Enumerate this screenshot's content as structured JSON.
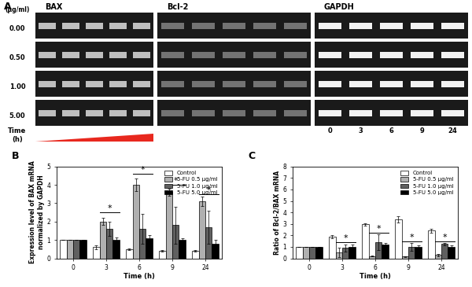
{
  "gel_panel": {
    "panel_label": "A",
    "genes": [
      "BAX",
      "Bcl-2",
      "GAPDH"
    ],
    "dose_unit": "(μg/ml)",
    "doses": [
      "0.00",
      "0.50",
      "1.00",
      "5.00"
    ],
    "time_label": "Time",
    "time_unit": "(h)",
    "times": [
      "0",
      "3",
      "6",
      "9",
      "24"
    ]
  },
  "chart_data": [
    {
      "panel_label": "B",
      "type": "bar",
      "x_label": "Time (h)",
      "y_label": "Expression level of BAX mRNA\nnormalized by GAPDH",
      "categories": [
        "0",
        "3",
        "6",
        "9",
        "24"
      ],
      "series": [
        {
          "name": "Control",
          "color": "#ffffff",
          "values": [
            1,
            0.6,
            0.5,
            0.4,
            0.4
          ],
          "errors": [
            0,
            0.1,
            0.05,
            0.05,
            0.05
          ]
        },
        {
          "name": "5-FU 0.5 μg/ml",
          "color": "#b0b0b0",
          "values": [
            1,
            2.0,
            4.0,
            3.6,
            3.1
          ],
          "errors": [
            0,
            0.2,
            0.35,
            0.2,
            0.25
          ]
        },
        {
          "name": "5-FU 1.0 μg/ml",
          "color": "#606060",
          "values": [
            1,
            1.6,
            1.6,
            1.8,
            1.7
          ],
          "errors": [
            0,
            0.4,
            0.8,
            1.0,
            0.9
          ]
        },
        {
          "name": "5-FU 5.0 μg/ml",
          "color": "#000000",
          "values": [
            1,
            1.0,
            1.1,
            1.0,
            0.8
          ],
          "errors": [
            0,
            0.15,
            0.15,
            0.1,
            0.2
          ]
        }
      ],
      "significance": {
        "categories": [
          "3",
          "6",
          "9",
          "24"
        ],
        "label": "*",
        "values": [
          2.5,
          4.6,
          4.0,
          3.5
        ]
      },
      "ylim": [
        0,
        5
      ],
      "yticks": [
        0,
        1,
        2,
        3,
        4,
        5
      ],
      "legend": "upper right"
    },
    {
      "panel_label": "C",
      "type": "bar",
      "x_label": "Time (h)",
      "y_label": "Ratio of Bcl-2/BAX mRNA",
      "categories": [
        "0",
        "3",
        "6",
        "9",
        "24"
      ],
      "series": [
        {
          "name": "Control",
          "color": "#ffffff",
          "values": [
            1,
            1.9,
            2.95,
            3.4,
            2.4
          ],
          "errors": [
            0,
            0.15,
            0.1,
            0.25,
            0.15
          ]
        },
        {
          "name": "5-FU 0.5 μg/ml",
          "color": "#b0b0b0",
          "values": [
            1,
            0.5,
            0.2,
            0.15,
            0.3
          ],
          "errors": [
            0,
            0.4,
            0.05,
            0.05,
            0.1
          ]
        },
        {
          "name": "5-FU 1.0 μg/ml",
          "color": "#606060",
          "values": [
            1,
            0.9,
            1.4,
            1.0,
            1.25
          ],
          "errors": [
            0,
            0.3,
            0.7,
            0.35,
            0.1
          ]
        },
        {
          "name": "5-FU 5.0 μg/ml",
          "color": "#000000",
          "values": [
            1,
            1.0,
            1.2,
            1.0,
            1.0
          ],
          "errors": [
            0,
            0.2,
            0.15,
            0.1,
            0.1
          ]
        }
      ],
      "significance": {
        "categories": [
          "3",
          "6",
          "9",
          "24"
        ],
        "label": "*",
        "values": [
          1.4,
          2.2,
          1.5,
          1.45
        ]
      },
      "ylim": [
        0,
        8
      ],
      "yticks": [
        0,
        1,
        2,
        3,
        4,
        5,
        6,
        7,
        8
      ],
      "legend": "upper right"
    }
  ]
}
